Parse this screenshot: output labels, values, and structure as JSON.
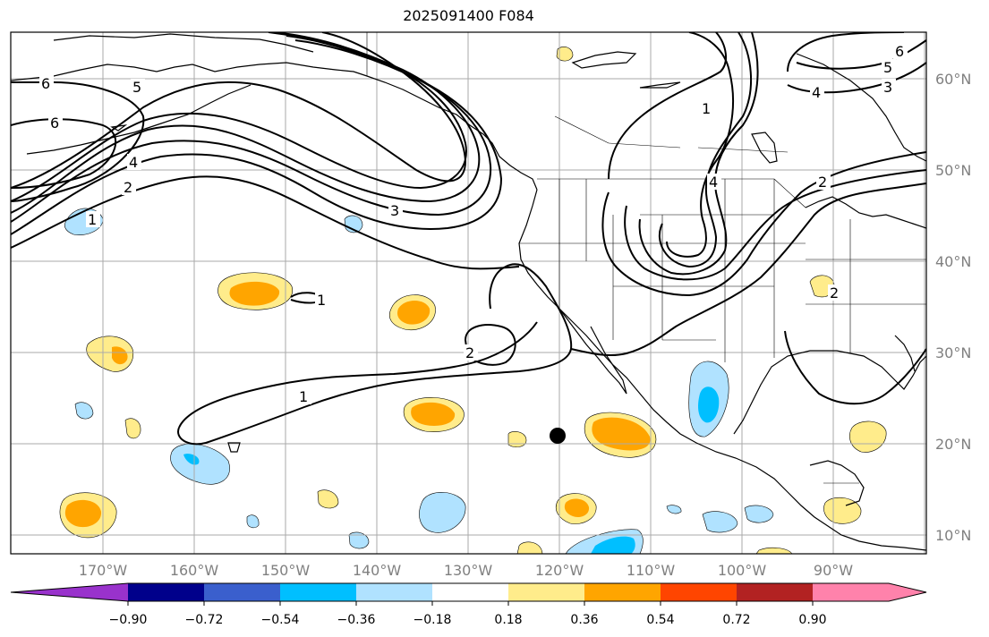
{
  "title": "2025091400 F084",
  "map": {
    "lat_labels": [
      "60°N",
      "50°N",
      "40°N",
      "30°N",
      "20°N",
      "10°N"
    ],
    "lon_labels": [
      "170°W",
      "160°W",
      "150°W",
      "140°W",
      "130°W",
      "120°W",
      "110°W",
      "100°W",
      "90°W"
    ],
    "gridlines": true,
    "contour_labels": [
      "6",
      "5",
      "6",
      "4",
      "2",
      "1",
      "3",
      "1",
      "1",
      "2",
      "2",
      "1",
      "4",
      "5",
      "3",
      "6",
      "4",
      "2"
    ]
  },
  "colorbar": {
    "labels": [
      "−0.90",
      "−0.72",
      "−0.54",
      "−0.36",
      "−0.18",
      "0.18",
      "0.36",
      "0.54",
      "0.72",
      "0.90"
    ],
    "colors": [
      "#9932cc",
      "#00008b",
      "#3a5fcd",
      "#00bfff",
      "#b0e2ff",
      "#ffffff",
      "#ffec8b",
      "#ffa500",
      "#ff4500",
      "#b22222",
      "#ff82ab"
    ]
  }
}
